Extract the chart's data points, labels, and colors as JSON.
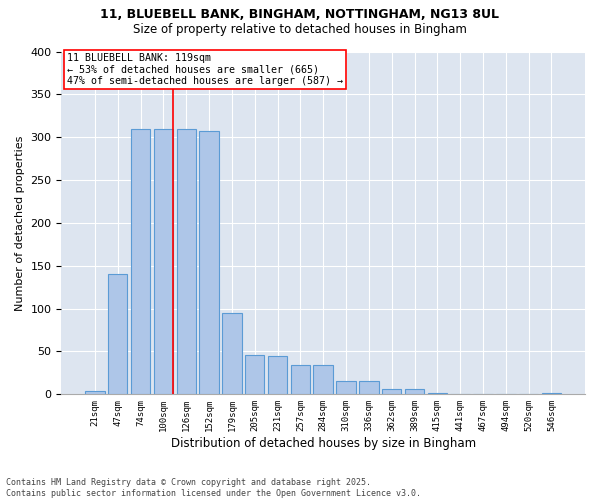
{
  "title_line1": "11, BLUEBELL BANK, BINGHAM, NOTTINGHAM, NG13 8UL",
  "title_line2": "Size of property relative to detached houses in Bingham",
  "xlabel": "Distribution of detached houses by size in Bingham",
  "ylabel": "Number of detached properties",
  "footer_line1": "Contains HM Land Registry data © Crown copyright and database right 2025.",
  "footer_line2": "Contains public sector information licensed under the Open Government Licence v3.0.",
  "categories": [
    "21sqm",
    "47sqm",
    "74sqm",
    "100sqm",
    "126sqm",
    "152sqm",
    "179sqm",
    "205sqm",
    "231sqm",
    "257sqm",
    "284sqm",
    "310sqm",
    "336sqm",
    "362sqm",
    "389sqm",
    "415sqm",
    "441sqm",
    "467sqm",
    "494sqm",
    "520sqm",
    "546sqm"
  ],
  "values": [
    4,
    140,
    310,
    310,
    310,
    307,
    95,
    46,
    45,
    34,
    34,
    15,
    15,
    6,
    6,
    1,
    0,
    0,
    0,
    0,
    2
  ],
  "bar_color": "#aec6e8",
  "bar_edge_color": "#5b9bd5",
  "background_color": "#dde5f0",
  "grid_color": "#ffffff",
  "annotation_text": "11 BLUEBELL BANK: 119sqm\n← 53% of detached houses are smaller (665)\n47% of semi-detached houses are larger (587) →",
  "vline_bar_index": 3,
  "ylim_max": 400,
  "yticks": [
    0,
    50,
    100,
    150,
    200,
    250,
    300,
    350,
    400
  ]
}
